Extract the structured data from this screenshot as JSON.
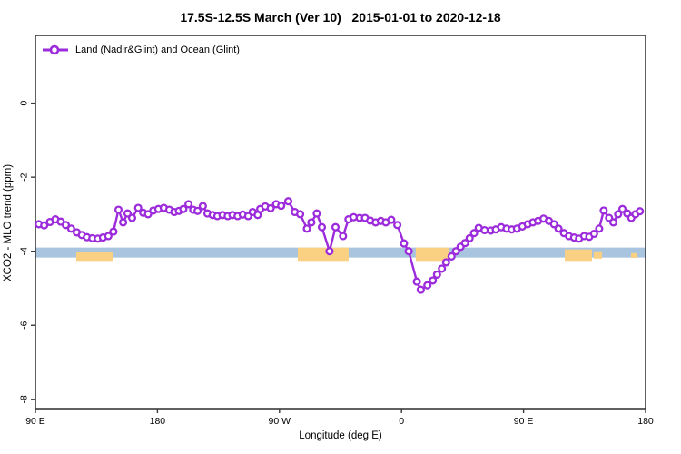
{
  "title": "17.5S-12.5S March (Ver 10)   2015-01-01 to 2020-12-18",
  "legend": {
    "position": "top-left",
    "entries": [
      {
        "label": "Land (Nadir&Glint) and Ocean (Glint)",
        "color": "#9C2BDB",
        "marker": "open-circle-on-line"
      }
    ]
  },
  "chart_data": {
    "type": "line",
    "title": "17.5S-12.5S March (Ver 10)   2015-01-01 to 2020-12-18",
    "xlabel": "Longitude (deg E)",
    "ylabel": "XCO2 - MLO trend (ppm)",
    "xlim": [
      90,
      540
    ],
    "ylim": [
      -8.25,
      1.83
    ],
    "grid": false,
    "x_ticks": [
      {
        "pos": 90,
        "label": "90 E"
      },
      {
        "pos": 180,
        "label": "180"
      },
      {
        "pos": 270,
        "label": "90 W"
      },
      {
        "pos": 360,
        "label": "0"
      },
      {
        "pos": 450,
        "label": "90 E"
      },
      {
        "pos": 540,
        "label": "180"
      }
    ],
    "y_ticks": [
      {
        "pos": 0,
        "label": "0"
      },
      {
        "pos": -2,
        "label": "-2"
      },
      {
        "pos": -4,
        "label": "-4"
      },
      {
        "pos": -6,
        "label": "-6"
      },
      {
        "pos": -8,
        "label": "-8"
      }
    ],
    "surface_band": {
      "description": "ocean (blue) vs land (orange) indicator strip near -4 ppm",
      "ocean_color": "#A9C4DF",
      "land_color": "#FAD182",
      "ocean": {
        "x0": 90,
        "x1": 540,
        "v0": -3.9,
        "v1": -4.17
      },
      "land_segments": [
        {
          "x0": 120.1,
          "x1": 146.9,
          "v0": -4.02,
          "v1": -4.26
        },
        {
          "x0": 283.5,
          "x1": 321.0,
          "v0": -3.9,
          "v1": -4.26
        },
        {
          "x0": 370.5,
          "x1": 395.3,
          "v0": -3.9,
          "v1": -4.26
        },
        {
          "x0": 480.4,
          "x1": 500.5,
          "v0": -3.95,
          "v1": -4.26
        },
        {
          "x0": 501.8,
          "x1": 507.9,
          "v0": -4.0,
          "v1": -4.2
        },
        {
          "x0": 529.3,
          "x1": 534.0,
          "v0": -4.05,
          "v1": -4.18
        }
      ]
    },
    "series": [
      {
        "name": "Land (Nadir&Glint) and Ocean (Glint)",
        "color": "#9C2BDB",
        "marker": "open-circle",
        "x": [
          92.5,
          96.5,
          100.7,
          104.7,
          108.7,
          112.4,
          116.4,
          120.5,
          124.2,
          128,
          132,
          136,
          139.8,
          143.8,
          147.5,
          151.3,
          154.7,
          158,
          161.3,
          165.8,
          169.5,
          173.1,
          176.9,
          180.7,
          184.7,
          188.7,
          192.4,
          195.8,
          199.1,
          202.9,
          206.4,
          209.6,
          213.5,
          216.9,
          220.7,
          224.2,
          228,
          231.8,
          235.3,
          239.1,
          242.9,
          246.9,
          250.2,
          253.9,
          255.8,
          259.5,
          263.5,
          267.5,
          271.3,
          276.5,
          281.3,
          285.3,
          290.2,
          293.5,
          297.5,
          301.3,
          306.9,
          311.3,
          316.9,
          320.9,
          324.7,
          329.1,
          333.1,
          336.9,
          340.9,
          344.7,
          348.4,
          352.4,
          356.9,
          361.8,
          365.3,
          371.3,
          374.2,
          379.1,
          383.1,
          386.2,
          389.8,
          392.9,
          396.9,
          400.2,
          403.5,
          406.9,
          410.2,
          413.5,
          416.9,
          421.3,
          425.8,
          429.5,
          433.5,
          437.5,
          441.3,
          445.1,
          449.1,
          453.1,
          456.9,
          460.7,
          464.7,
          468.7,
          472.5,
          475.8,
          479.8,
          483.5,
          487.3,
          490.9,
          494.7,
          498.5,
          502,
          505.8,
          509.1,
          513.1,
          516.2,
          519.8,
          522.9,
          526.5,
          529.5,
          532.5,
          535.8
        ],
        "y": [
          -3.27,
          -3.3,
          -3.21,
          -3.14,
          -3.2,
          -3.29,
          -3.39,
          -3.49,
          -3.56,
          -3.62,
          -3.65,
          -3.66,
          -3.63,
          -3.59,
          -3.47,
          -2.88,
          -3.22,
          -2.98,
          -3.1,
          -2.83,
          -2.96,
          -3,
          -2.9,
          -2.86,
          -2.83,
          -2.88,
          -2.94,
          -2.91,
          -2.86,
          -2.73,
          -2.88,
          -2.91,
          -2.78,
          -2.98,
          -3.02,
          -3.05,
          -3.02,
          -3.05,
          -3.02,
          -3.05,
          -3.01,
          -3.05,
          -2.94,
          -3.02,
          -2.86,
          -2.79,
          -2.84,
          -2.73,
          -2.77,
          -2.65,
          -2.94,
          -3,
          -3.39,
          -3.22,
          -2.98,
          -3.35,
          -4,
          -3.35,
          -3.59,
          -3.14,
          -3.08,
          -3.1,
          -3.1,
          -3.17,
          -3.22,
          -3.18,
          -3.22,
          -3.15,
          -3.29,
          -3.79,
          -4,
          -4.82,
          -5.04,
          -4.92,
          -4.79,
          -4.63,
          -4.47,
          -4.3,
          -4.14,
          -4,
          -3.88,
          -3.78,
          -3.65,
          -3.51,
          -3.37,
          -3.43,
          -3.44,
          -3.41,
          -3.35,
          -3.39,
          -3.41,
          -3.39,
          -3.33,
          -3.27,
          -3.22,
          -3.18,
          -3.12,
          -3.18,
          -3.27,
          -3.39,
          -3.51,
          -3.59,
          -3.63,
          -3.66,
          -3.59,
          -3.61,
          -3.53,
          -3.39,
          -2.9,
          -3.1,
          -3.22,
          -3,
          -2.86,
          -2.98,
          -3.1,
          -3,
          -2.92
        ]
      }
    ],
    "axis_color": "#3a3a3a",
    "tick_label_color": "#000000"
  }
}
